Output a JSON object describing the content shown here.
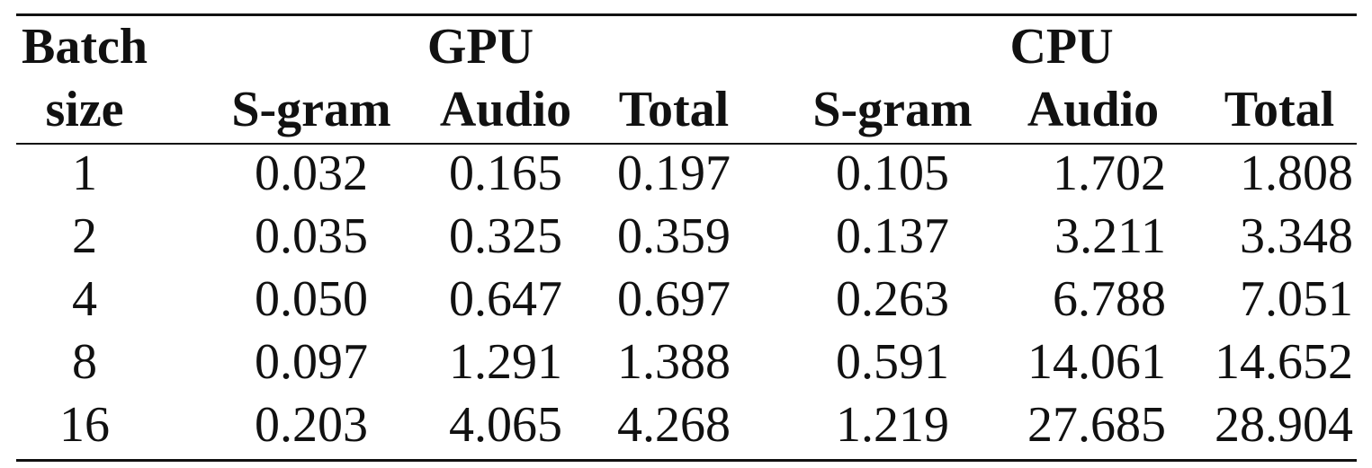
{
  "table": {
    "header": {
      "batch_line1": "Batch",
      "batch_line2": "size",
      "gpu_group": "GPU",
      "cpu_group": "CPU",
      "gpu_cols": [
        "S-gram",
        "Audio",
        "Total"
      ],
      "cpu_cols": [
        "S-gram",
        "Audio",
        "Total"
      ]
    },
    "rows": [
      {
        "batch": "1",
        "gpu": [
          "0.032",
          "0.165",
          "0.197"
        ],
        "cpu": [
          "0.105",
          "1.702",
          "1.808"
        ]
      },
      {
        "batch": "2",
        "gpu": [
          "0.035",
          "0.325",
          "0.359"
        ],
        "cpu": [
          "0.137",
          "3.211",
          "3.348"
        ]
      },
      {
        "batch": "4",
        "gpu": [
          "0.050",
          "0.647",
          "0.697"
        ],
        "cpu": [
          "0.263",
          "6.788",
          "7.051"
        ]
      },
      {
        "batch": "8",
        "gpu": [
          "0.097",
          "1.291",
          "1.388"
        ],
        "cpu": [
          "0.591",
          "14.061",
          "14.652"
        ]
      },
      {
        "batch": "16",
        "gpu": [
          "0.203",
          "4.065",
          "4.268"
        ],
        "cpu": [
          "1.219",
          "27.685",
          "28.904"
        ]
      }
    ]
  }
}
